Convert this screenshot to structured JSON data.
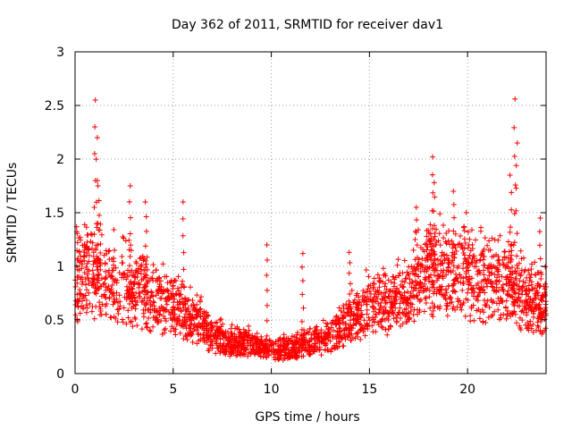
{
  "chart_data": {
    "type": "scatter",
    "title": "Day 362 of 2011, SRMTID for receiver dav1",
    "xlabel": "GPS time / hours",
    "ylabel": "SRMTID / TECUs",
    "xlim": [
      0,
      24
    ],
    "ylim": [
      0,
      3
    ],
    "x_ticks": [
      0,
      5,
      10,
      15,
      20
    ],
    "x_tick_labels": [
      "0",
      "5",
      "10",
      "15",
      "20"
    ],
    "y_ticks": [
      0,
      0.5,
      1,
      1.5,
      2,
      2.5,
      3
    ],
    "y_tick_labels": [
      "0",
      "0.5",
      "1",
      "1.5",
      "2",
      "2.5",
      "3"
    ],
    "grid": true,
    "marker": "+",
    "marker_color": "#ff0000",
    "series": [
      {
        "name": "SRMTID",
        "color": "#ff0000",
        "envelope_note": "approximate trend of the dense point cloud (hour, TECU)",
        "trend": [
          [
            0,
            0.75
          ],
          [
            1,
            0.8
          ],
          [
            2,
            0.75
          ],
          [
            3,
            0.7
          ],
          [
            4,
            0.6
          ],
          [
            5,
            0.55
          ],
          [
            6,
            0.45
          ],
          [
            7,
            0.3
          ],
          [
            8,
            0.25
          ],
          [
            9,
            0.25
          ],
          [
            10,
            0.2
          ],
          [
            11,
            0.2
          ],
          [
            12,
            0.25
          ],
          [
            13,
            0.3
          ],
          [
            14,
            0.45
          ],
          [
            15,
            0.55
          ],
          [
            16,
            0.55
          ],
          [
            17,
            0.65
          ],
          [
            18,
            0.85
          ],
          [
            19,
            0.85
          ],
          [
            20,
            0.8
          ],
          [
            21,
            0.75
          ],
          [
            22,
            0.75
          ],
          [
            23,
            0.6
          ],
          [
            24,
            0.55
          ]
        ],
        "peaks": [
          {
            "x": 1.0,
            "y": 2.55
          },
          {
            "x": 1.1,
            "y": 2.2
          },
          {
            "x": 1.2,
            "y": 1.75
          },
          {
            "x": 2.8,
            "y": 1.75
          },
          {
            "x": 3.6,
            "y": 1.6
          },
          {
            "x": 5.5,
            "y": 1.6
          },
          {
            "x": 9.8,
            "y": 1.2
          },
          {
            "x": 11.6,
            "y": 1.12
          },
          {
            "x": 14.0,
            "y": 1.13
          },
          {
            "x": 17.4,
            "y": 1.55
          },
          {
            "x": 18.2,
            "y": 2.02
          },
          {
            "x": 18.3,
            "y": 1.78
          },
          {
            "x": 19.3,
            "y": 1.7
          },
          {
            "x": 22.4,
            "y": 2.56
          },
          {
            "x": 22.5,
            "y": 2.15
          },
          {
            "x": 22.2,
            "y": 1.85
          },
          {
            "x": 23.7,
            "y": 1.45
          }
        ]
      }
    ]
  }
}
